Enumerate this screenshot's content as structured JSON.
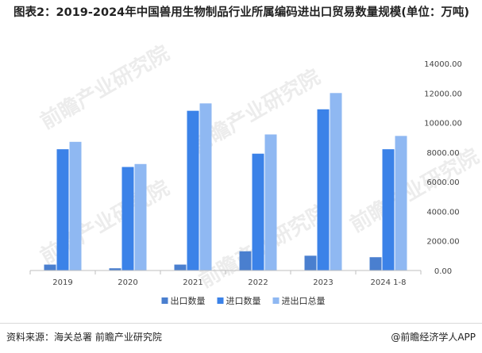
{
  "title": "图表2：2019-2024年中国兽用生物制品行业所属编码进出口贸易数量规模(单位：万吨)",
  "chart_data": {
    "type": "bar",
    "categories": [
      "2019",
      "2020",
      "2021",
      "2022",
      "2023",
      "2024 1-8"
    ],
    "series": [
      {
        "name": "出口数量",
        "values": [
          400,
          150,
          400,
          1300,
          1000,
          900
        ],
        "color": "#4a7fcf"
      },
      {
        "name": "进口数量",
        "values": [
          8200,
          7000,
          10800,
          7900,
          10900,
          8200
        ],
        "color": "#3b82e8"
      },
      {
        "name": "进出口总量",
        "values": [
          8700,
          7200,
          11300,
          9200,
          12000,
          9100
        ],
        "color": "#8fb8f2"
      }
    ],
    "ylim": [
      0,
      14000
    ],
    "yticks": [
      "0.00",
      "2000.00",
      "4000.00",
      "6000.00",
      "8000.00",
      "10000.00",
      "12000.00",
      "14000.00"
    ],
    "yaxis_position": "right",
    "grid": false,
    "legend_position": "bottom"
  },
  "footer": {
    "source": "资料来源：海关总署 前瞻产业研究院",
    "brand": "@前瞻经济学人APP"
  },
  "watermark": "前瞻产业研究院"
}
